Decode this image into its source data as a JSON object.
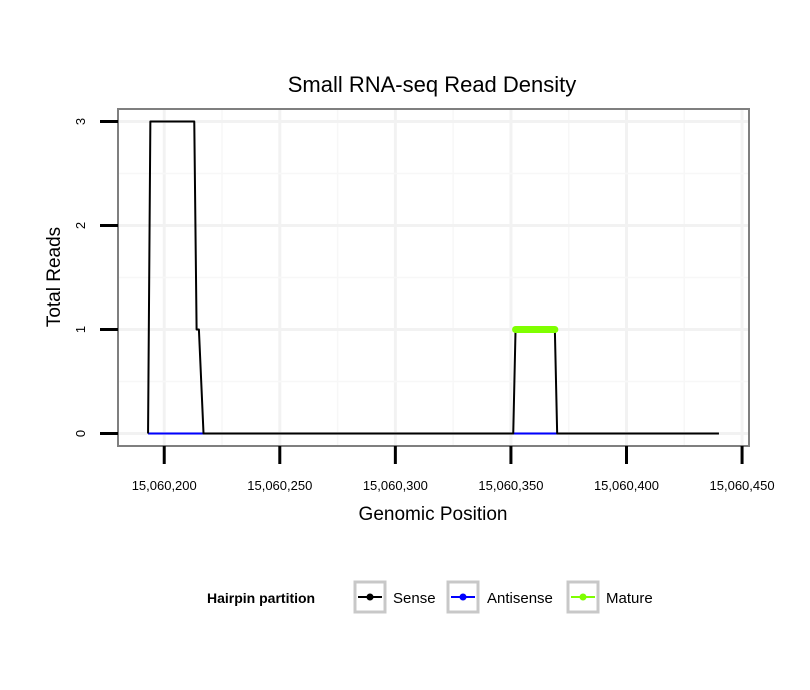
{
  "chart_data": {
    "type": "line",
    "title": "Small RNA-seq Read Density",
    "xlabel": "Genomic Position",
    "ylabel": "Total Reads",
    "xlim": [
      15060180,
      15060453
    ],
    "ylim": [
      -0.12,
      3.12
    ],
    "x_ticks": [
      {
        "value": 15060200,
        "label": "15,060,200"
      },
      {
        "value": 15060250,
        "label": "15,060,250"
      },
      {
        "value": 15060300,
        "label": "15,060,300"
      },
      {
        "value": 15060350,
        "label": "15,060,350"
      },
      {
        "value": 15060400,
        "label": "15,060,400"
      },
      {
        "value": 15060450,
        "label": "15,060,450"
      }
    ],
    "y_ticks": [
      {
        "value": 0,
        "label": "0"
      },
      {
        "value": 1,
        "label": "1"
      },
      {
        "value": 2,
        "label": "2"
      },
      {
        "value": 3,
        "label": "3"
      }
    ],
    "grid": true,
    "series": [
      {
        "name": "Sense",
        "color": "#000000",
        "x": [
          15060193,
          15060194,
          15060213,
          15060214,
          15060215,
          15060217,
          15060351,
          15060352,
          15060369,
          15060370,
          15060440
        ],
        "y": [
          0,
          3,
          3,
          1,
          1,
          0,
          0,
          1,
          1,
          0,
          0
        ]
      },
      {
        "name": "Antisense",
        "color": "#0000ff",
        "x": [
          15060193,
          15060217,
          15060351,
          15060370
        ],
        "y": [
          0,
          0,
          0,
          0
        ]
      },
      {
        "name": "Mature",
        "color": "#7fff00",
        "x": [
          15060352,
          15060369
        ],
        "y": [
          1,
          1
        ]
      }
    ],
    "legend": {
      "title": "Hairpin partition",
      "position": "bottom"
    }
  }
}
